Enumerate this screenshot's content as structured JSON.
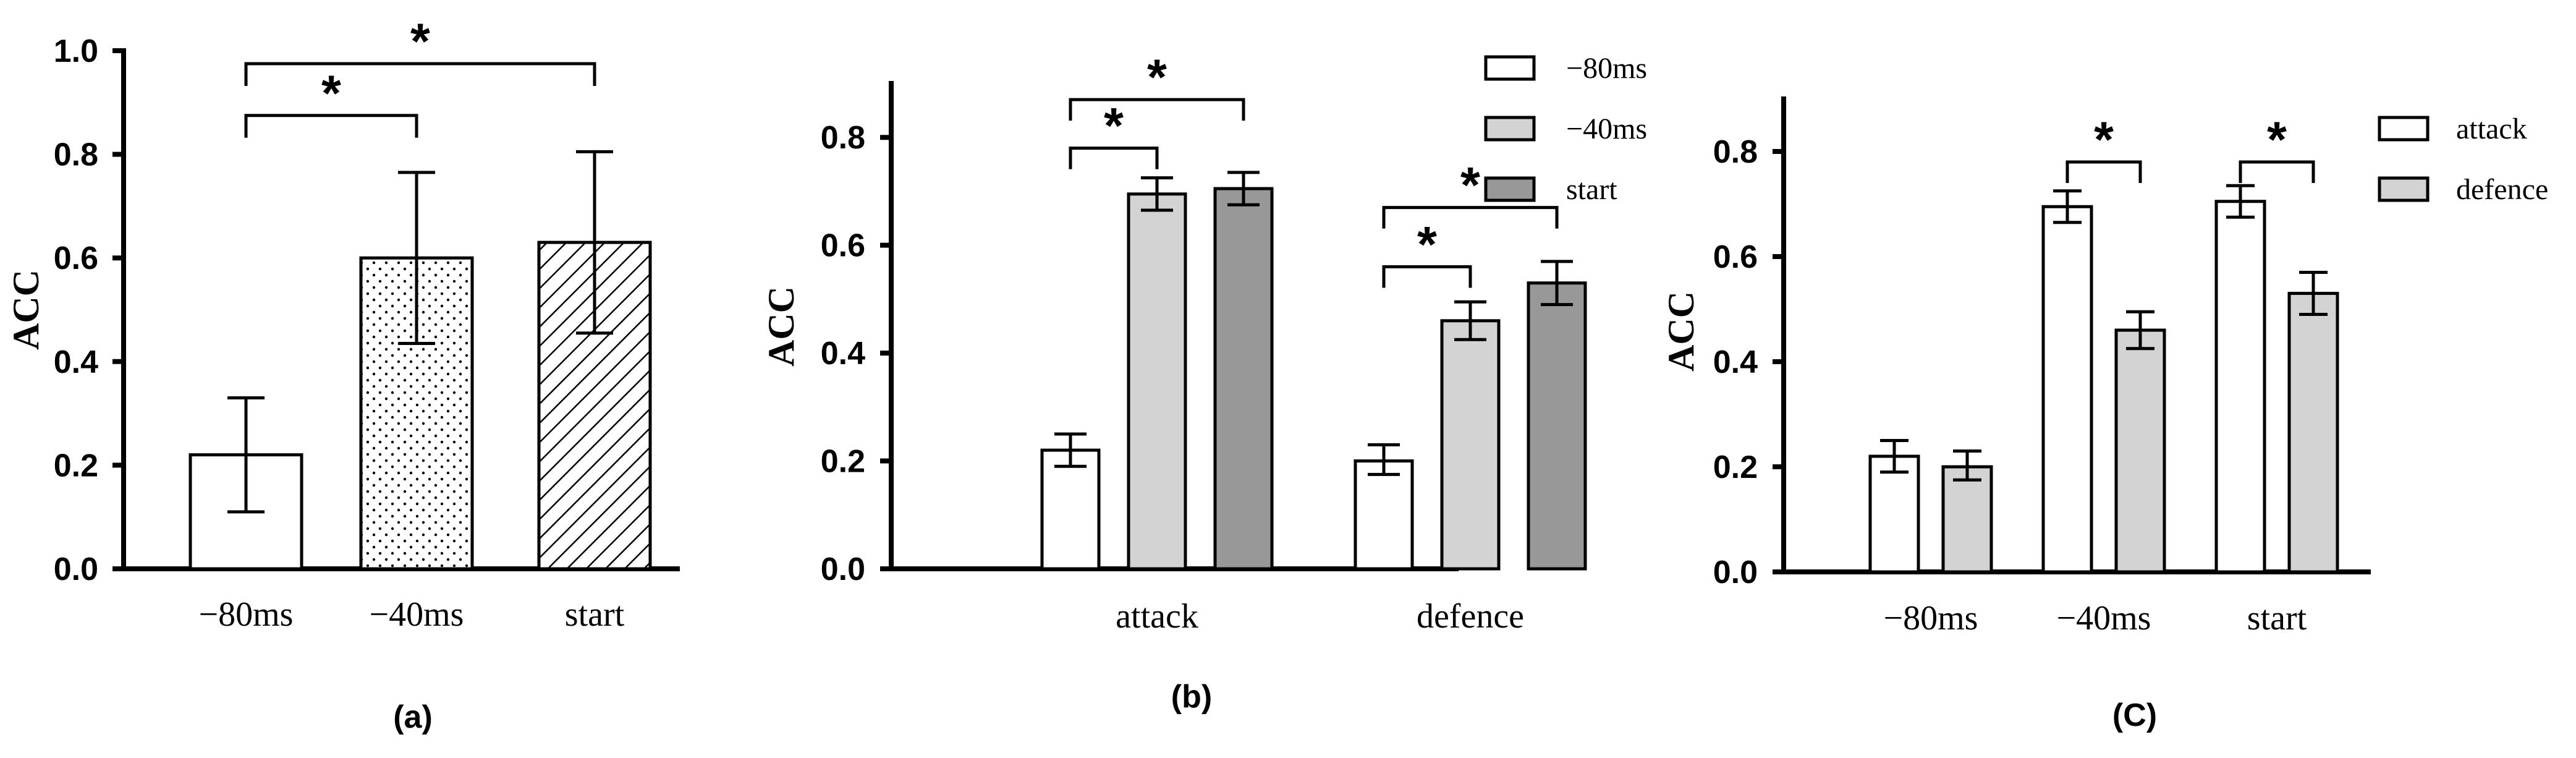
{
  "chart_data": [
    {
      "panel": "(a)",
      "type": "bar",
      "ylabel": "ACC",
      "ylim": [
        0,
        1.0
      ],
      "yticks": [
        "0.0",
        "0.2",
        "0.4",
        "0.6",
        "0.8",
        "1.0"
      ],
      "categories": [
        "−80ms",
        "−40ms",
        "start"
      ],
      "values": [
        0.22,
        0.6,
        0.63
      ],
      "error_low": [
        0.11,
        0.435,
        0.455
      ],
      "error_high": [
        0.33,
        0.765,
        0.805
      ],
      "patterns": [
        "none",
        "dots",
        "hatch"
      ],
      "significance": [
        {
          "from": 0,
          "to": 1,
          "label": "*",
          "y": 0.875
        },
        {
          "from": 0,
          "to": 2,
          "label": "*",
          "y": 0.975
        }
      ]
    },
    {
      "panel": "(b)",
      "type": "bar",
      "ylabel": "ACC",
      "ylim": [
        0,
        0.9
      ],
      "yticks": [
        "0.0",
        "0.2",
        "0.4",
        "0.6",
        "0.8"
      ],
      "categories": [
        "attack",
        "defence"
      ],
      "series": [
        {
          "name": "−80ms",
          "values": [
            0.22,
            0.2
          ],
          "error_low": [
            0.19,
            0.175
          ],
          "error_high": [
            0.25,
            0.23
          ],
          "color": "#ffffff"
        },
        {
          "name": "−40ms",
          "values": [
            0.695,
            0.46
          ],
          "error_low": [
            0.665,
            0.425
          ],
          "error_high": [
            0.725,
            0.495
          ],
          "color": "#d3d3d3"
        },
        {
          "name": "start",
          "values": [
            0.705,
            0.53
          ],
          "error_low": [
            0.675,
            0.49
          ],
          "error_high": [
            0.735,
            0.57
          ],
          "color": "#989898"
        }
      ],
      "significance": [
        {
          "group": 0,
          "from": 0,
          "to": 1,
          "label": "*",
          "y": 0.78
        },
        {
          "group": 0,
          "from": 0,
          "to": 2,
          "label": "*",
          "y": 0.87
        },
        {
          "group": 1,
          "from": 0,
          "to": 1,
          "label": "*",
          "y": 0.56
        },
        {
          "group": 1,
          "from": 0,
          "to": 2,
          "label": "*",
          "y": 0.67
        }
      ],
      "legend_position": "top-right"
    },
    {
      "panel": "(C)",
      "type": "bar",
      "ylabel": "ACC",
      "ylim": [
        0,
        0.9
      ],
      "yticks": [
        "0.0",
        "0.2",
        "0.4",
        "0.6",
        "0.8"
      ],
      "categories": [
        "−80ms",
        "−40ms",
        "start"
      ],
      "series": [
        {
          "name": "attack",
          "values": [
            0.22,
            0.695,
            0.705
          ],
          "error_low": [
            0.19,
            0.665,
            0.675
          ],
          "error_high": [
            0.25,
            0.725,
            0.735
          ],
          "color": "#ffffff"
        },
        {
          "name": "defence",
          "values": [
            0.2,
            0.46,
            0.53
          ],
          "error_low": [
            0.175,
            0.425,
            0.49
          ],
          "error_high": [
            0.23,
            0.495,
            0.57
          ],
          "color": "#d3d3d3"
        }
      ],
      "significance": [
        {
          "group": 1,
          "from": 0,
          "to": 1,
          "label": "*",
          "y": 0.78
        },
        {
          "group": 2,
          "from": 0,
          "to": 1,
          "label": "*",
          "y": 0.78
        }
      ],
      "legend_position": "top-right"
    }
  ]
}
